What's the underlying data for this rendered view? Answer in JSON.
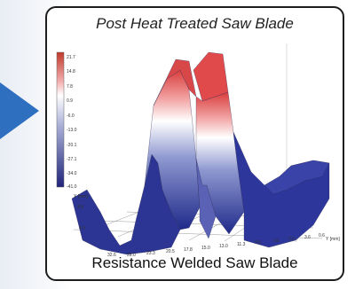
{
  "figure": {
    "title": "Post Heat Treated Saw Blade",
    "caption": "Resistance Welded Saw Blade"
  },
  "colorbar": {
    "ticks": [
      "21.7",
      "14.8",
      "7.8",
      "0.9",
      "-6.0",
      "-13.0",
      "-20.1",
      "-27.1",
      "-34.0",
      "-41.0"
    ]
  },
  "axes": {
    "x_label": "X [mm]",
    "y_label": "Y [mm]",
    "x_ticks": [
      "4.8",
      "4.0"
    ],
    "y_ticks": [
      "32.6",
      "28.0",
      "23.3",
      "20.5",
      "17.8",
      "15.0",
      "13.0",
      "11.3",
      "9.5",
      "7.8",
      "5.6",
      "3.6",
      "0.6"
    ]
  },
  "colors": {
    "arrow": "#2f6fc0",
    "surface_high": "#d32f2f",
    "surface_mid": "#ffffff",
    "surface_low": "#1f2a8a"
  },
  "icons": [
    "arrow-right-icon"
  ]
}
